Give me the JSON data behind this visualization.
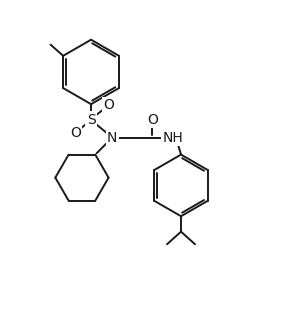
{
  "line_color": "#1a1a1a",
  "bg_color": "#ffffff",
  "lw": 1.4,
  "figsize": [
    2.83,
    3.26
  ],
  "dpi": 100,
  "xlim": [
    0,
    10
  ],
  "ylim": [
    0,
    11.5
  ]
}
